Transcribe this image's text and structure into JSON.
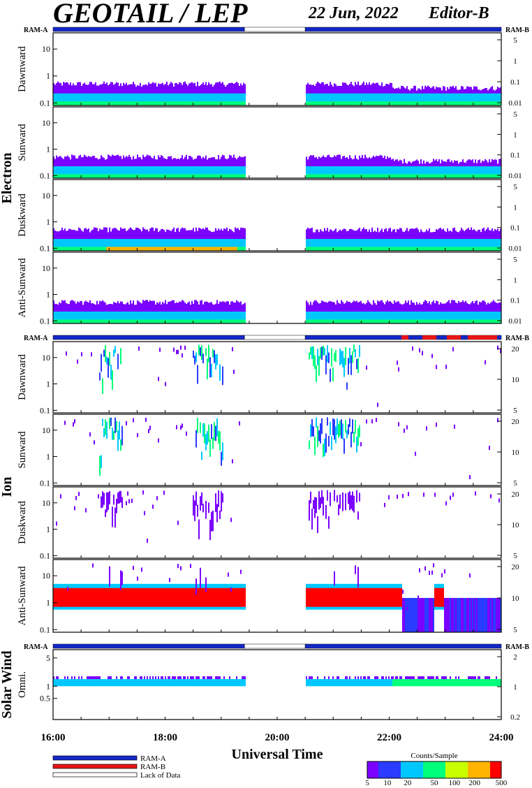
{
  "header": {
    "title": "GEOTAIL / LEP",
    "date": "22 Jun, 2022",
    "editor": "Editor-B"
  },
  "chart_data": {
    "type": "heatmap",
    "x_axis": {
      "label": "Universal Time",
      "ticks": [
        "16:00",
        "18:00",
        "20:00",
        "22:00",
        "24:00"
      ],
      "range": [
        "16:00",
        "24:00"
      ]
    },
    "data_gap": [
      "19:25",
      "20:30"
    ],
    "ram_labels": {
      "left": "RAM-A",
      "right": "RAM-B"
    },
    "groups": [
      {
        "name": "Electron",
        "panels": [
          {
            "name": "Dawnward",
            "y_ticks": [
              "10",
              "1",
              "0.1"
            ],
            "right_ticks": [
              "5",
              "1",
              "0.1",
              "0.01"
            ],
            "band_center": 0.25
          },
          {
            "name": "Sunward",
            "y_ticks": [
              "10",
              "1",
              "0.1"
            ],
            "right_ticks": [
              "5",
              "1",
              "0.1",
              "0.01"
            ],
            "band_center": 0.25
          },
          {
            "name": "Duskward",
            "y_ticks": [
              "10",
              "1",
              "0.1"
            ],
            "right_ticks": [
              "5",
              "1",
              "0.1",
              "0.01"
            ],
            "band_center": 0.25
          },
          {
            "name": "Anti-Sunward",
            "y_ticks": [
              "10",
              "1",
              "0.1"
            ],
            "right_ticks": [
              "5",
              "1",
              "0.1",
              "0.01"
            ],
            "band_center": 0.25
          }
        ]
      },
      {
        "name": "Ion",
        "panels": [
          {
            "name": "Dawnward",
            "y_ticks": [
              "10",
              "1",
              "0.1"
            ],
            "right_ticks": [
              "20",
              "10",
              "5"
            ]
          },
          {
            "name": "Sunward",
            "y_ticks": [
              "10",
              "1",
              "0.1"
            ],
            "right_ticks": [
              "20",
              "10",
              "5"
            ]
          },
          {
            "name": "Duskward",
            "y_ticks": [
              "10",
              "1",
              "0.1"
            ],
            "right_ticks": [
              "20",
              "10",
              "5"
            ]
          },
          {
            "name": "Anti-Sunward",
            "y_ticks": [
              "10",
              "1",
              "0.1"
            ],
            "right_ticks": [
              "20",
              "10",
              "5"
            ],
            "band_center": 1.5
          }
        ]
      },
      {
        "name": "Solar Wind",
        "panels": [
          {
            "name": "Omni.",
            "y_ticks": [
              "5",
              "1",
              "0.5"
            ],
            "right_ticks": [
              "2",
              "1",
              "0.2"
            ],
            "band_center": 1.2
          }
        ]
      }
    ],
    "colorbar": {
      "label": "Counts/Sample",
      "ticks": [
        "5",
        "10",
        "20",
        "50",
        "100",
        "200",
        "500"
      ],
      "colors": [
        "#7a00ff",
        "#2a3cff",
        "#00c8ff",
        "#00ff7a",
        "#c8ff00",
        "#ffb400",
        "#ff0000"
      ]
    },
    "legend": [
      {
        "label": "RAM-A",
        "color": "#1428c8"
      },
      {
        "label": "RAM-B",
        "color": "#e81414"
      },
      {
        "label": "Lack of Data",
        "color": "#ffffff"
      }
    ]
  }
}
